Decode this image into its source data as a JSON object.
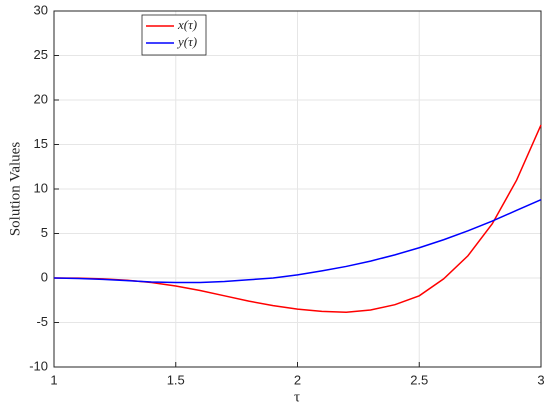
{
  "chart_data": {
    "type": "line",
    "xlabel": "τ",
    "ylabel": "Solution Values",
    "x": [
      1.0,
      1.1,
      1.2,
      1.3,
      1.4,
      1.5,
      1.6,
      1.7,
      1.8,
      1.9,
      2.0,
      2.1,
      2.2,
      2.3,
      2.4,
      2.5,
      2.6,
      2.7,
      2.8,
      2.9,
      3.0
    ],
    "series": [
      {
        "name": "x(τ)",
        "color": "#ff0000",
        "values": [
          0,
          -0.02,
          -0.1,
          -0.25,
          -0.5,
          -0.9,
          -1.4,
          -2.0,
          -2.6,
          -3.1,
          -3.5,
          -3.75,
          -3.85,
          -3.6,
          -3.0,
          -2.0,
          -0.1,
          2.5,
          6.1,
          11.0,
          17.2
        ]
      },
      {
        "name": "y(τ)",
        "color": "#0000ff",
        "values": [
          0,
          -0.05,
          -0.15,
          -0.3,
          -0.45,
          -0.5,
          -0.5,
          -0.4,
          -0.2,
          0.0,
          0.35,
          0.8,
          1.3,
          1.9,
          2.6,
          3.4,
          4.3,
          5.3,
          6.4,
          7.6,
          8.8
        ]
      }
    ],
    "xlim": [
      1,
      3
    ],
    "xticks": [
      1,
      1.5,
      2,
      2.5,
      3
    ],
    "ylim": [
      -10,
      30
    ],
    "yticks": [
      -10,
      -5,
      0,
      5,
      10,
      15,
      20,
      25,
      30
    ],
    "grid": true,
    "legend": "upper-left"
  }
}
